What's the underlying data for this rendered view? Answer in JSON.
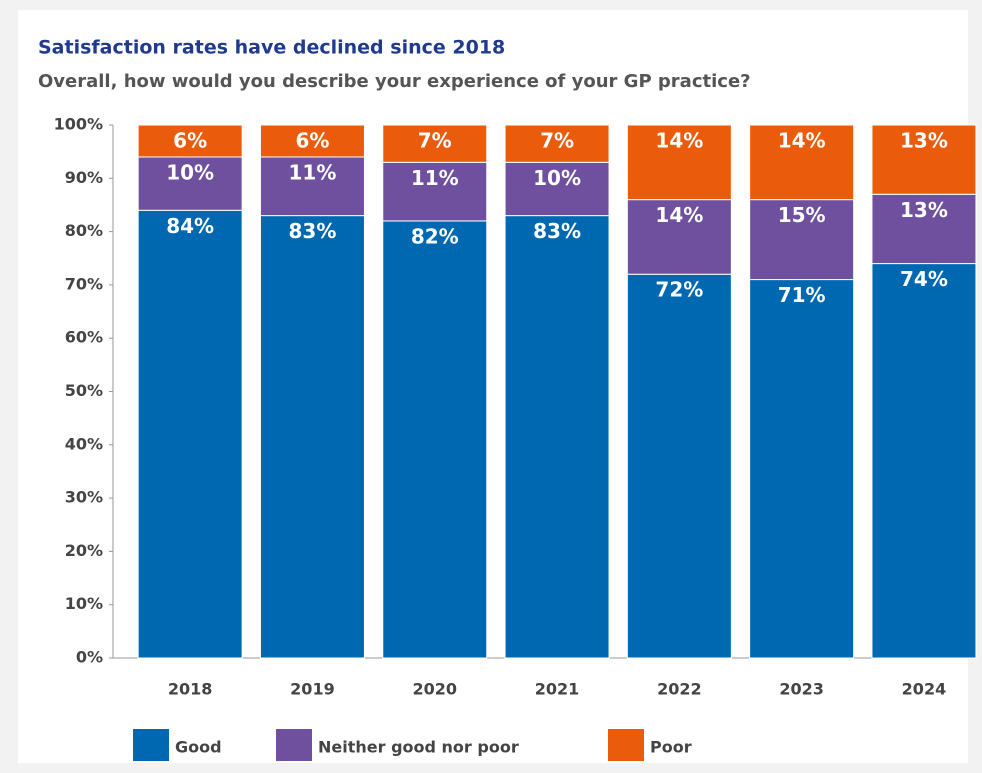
{
  "chart_data": {
    "type": "stacked_bar",
    "title": "Satisfaction rates have declined since 2018",
    "subtitle": "Overall, how would you describe your experience of your GP practice?",
    "categories": [
      "2018",
      "2019",
      "2020",
      "2021",
      "2022",
      "2023",
      "2024"
    ],
    "series": [
      {
        "name": "Good",
        "color": "#0067b1",
        "values": [
          84,
          83,
          82,
          83,
          72,
          71,
          74
        ],
        "value_labels": [
          "84%",
          "83%",
          "82%",
          "83%",
          "72%",
          "71%",
          "74%"
        ]
      },
      {
        "name": "Neither good nor poor",
        "color": "#6f509f",
        "values": [
          10,
          11,
          11,
          10,
          14,
          15,
          13
        ],
        "value_labels": [
          "10%",
          "11%",
          "11%",
          "10%",
          "14%",
          "15%",
          "13%"
        ]
      },
      {
        "name": "Poor",
        "color": "#ea5b0c",
        "values": [
          6,
          6,
          7,
          7,
          14,
          14,
          13
        ],
        "value_labels": [
          "6%",
          "6%",
          "7%",
          "7%",
          "14%",
          "14%",
          "13%"
        ]
      }
    ],
    "ylim": [
      0,
      100
    ],
    "yticks": [
      {
        "value": 0,
        "label": "0%"
      },
      {
        "value": 10,
        "label": "10%"
      },
      {
        "value": 20,
        "label": "20%"
      },
      {
        "value": 30,
        "label": "30%"
      },
      {
        "value": 40,
        "label": "40%"
      },
      {
        "value": 50,
        "label": "50%"
      },
      {
        "value": 60,
        "label": "60%"
      },
      {
        "value": 70,
        "label": "70%"
      },
      {
        "value": 80,
        "label": "80%"
      },
      {
        "value": 90,
        "label": "90%"
      },
      {
        "value": 100,
        "label": "100%"
      }
    ],
    "legend": "bottom"
  }
}
